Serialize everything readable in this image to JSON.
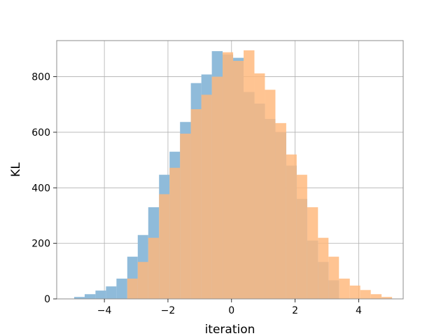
{
  "chart_data": {
    "type": "bar",
    "subtype": "overlapping-histogram",
    "title": "",
    "xlabel": "iteration",
    "ylabel": "KL",
    "xlim": [
      -5.5,
      5.4
    ],
    "ylim": [
      0,
      930
    ],
    "xticks": [
      -4,
      -2,
      0,
      2,
      4
    ],
    "xtick_labels": [
      "−4",
      "−2",
      "0",
      "2",
      "4"
    ],
    "yticks": [
      0,
      200,
      400,
      600,
      800
    ],
    "ytick_labels": [
      "0",
      "200",
      "400",
      "600",
      "800"
    ],
    "grid": true,
    "legend": "none",
    "bin_width": 0.3333,
    "series": [
      {
        "color": "#8fbbda",
        "alpha": 1.0,
        "bins": [
          {
            "x0": -4.95,
            "x1": -4.62,
            "value": 7
          },
          {
            "x0": -4.62,
            "x1": -4.28,
            "value": 17
          },
          {
            "x0": -4.28,
            "x1": -3.95,
            "value": 30
          },
          {
            "x0": -3.95,
            "x1": -3.62,
            "value": 45
          },
          {
            "x0": -3.62,
            "x1": -3.28,
            "value": 73
          },
          {
            "x0": -3.28,
            "x1": -2.95,
            "value": 152
          },
          {
            "x0": -2.95,
            "x1": -2.62,
            "value": 230
          },
          {
            "x0": -2.62,
            "x1": -2.28,
            "value": 330
          },
          {
            "x0": -2.28,
            "x1": -1.95,
            "value": 447
          },
          {
            "x0": -1.95,
            "x1": -1.62,
            "value": 530
          },
          {
            "x0": -1.62,
            "x1": -1.28,
            "value": 637
          },
          {
            "x0": -1.28,
            "x1": -0.95,
            "value": 777
          },
          {
            "x0": -0.95,
            "x1": -0.62,
            "value": 808
          },
          {
            "x0": -0.62,
            "x1": -0.28,
            "value": 892
          },
          {
            "x0": -0.28,
            "x1": 0.05,
            "value": 880
          },
          {
            "x0": 0.05,
            "x1": 0.38,
            "value": 868
          },
          {
            "x0": 0.38,
            "x1": 0.72,
            "value": 745
          },
          {
            "x0": 0.72,
            "x1": 1.05,
            "value": 703
          },
          {
            "x0": 1.05,
            "x1": 1.38,
            "value": 648
          },
          {
            "x0": 1.38,
            "x1": 1.72,
            "value": 600
          },
          {
            "x0": 1.72,
            "x1": 2.05,
            "value": 480
          },
          {
            "x0": 2.05,
            "x1": 2.38,
            "value": 360
          },
          {
            "x0": 2.38,
            "x1": 2.72,
            "value": 210
          },
          {
            "x0": 2.72,
            "x1": 3.05,
            "value": 133
          },
          {
            "x0": 3.05,
            "x1": 3.38,
            "value": 67
          }
        ]
      },
      {
        "color": "#ffb77a",
        "alpha": 0.82,
        "bins": [
          {
            "x0": -3.28,
            "x1": -2.95,
            "value": 73
          },
          {
            "x0": -2.95,
            "x1": -2.62,
            "value": 133
          },
          {
            "x0": -2.62,
            "x1": -2.28,
            "value": 220
          },
          {
            "x0": -2.28,
            "x1": -1.95,
            "value": 377
          },
          {
            "x0": -1.95,
            "x1": -1.62,
            "value": 472
          },
          {
            "x0": -1.62,
            "x1": -1.28,
            "value": 595
          },
          {
            "x0": -1.28,
            "x1": -0.95,
            "value": 683
          },
          {
            "x0": -0.95,
            "x1": -0.62,
            "value": 735
          },
          {
            "x0": -0.62,
            "x1": -0.28,
            "value": 800
          },
          {
            "x0": -0.28,
            "x1": 0.05,
            "value": 888
          },
          {
            "x0": 0.05,
            "x1": 0.38,
            "value": 857
          },
          {
            "x0": 0.38,
            "x1": 0.72,
            "value": 895
          },
          {
            "x0": 0.72,
            "x1": 1.05,
            "value": 812
          },
          {
            "x0": 1.05,
            "x1": 1.38,
            "value": 753
          },
          {
            "x0": 1.38,
            "x1": 1.72,
            "value": 633
          },
          {
            "x0": 1.72,
            "x1": 2.05,
            "value": 520
          },
          {
            "x0": 2.05,
            "x1": 2.38,
            "value": 447
          },
          {
            "x0": 2.38,
            "x1": 2.72,
            "value": 330
          },
          {
            "x0": 2.72,
            "x1": 3.05,
            "value": 220
          },
          {
            "x0": 3.05,
            "x1": 3.38,
            "value": 152
          },
          {
            "x0": 3.38,
            "x1": 3.72,
            "value": 73
          },
          {
            "x0": 3.72,
            "x1": 4.05,
            "value": 48
          },
          {
            "x0": 4.05,
            "x1": 4.38,
            "value": 32
          },
          {
            "x0": 4.38,
            "x1": 4.72,
            "value": 17
          },
          {
            "x0": 4.72,
            "x1": 5.05,
            "value": 7
          }
        ]
      }
    ]
  }
}
